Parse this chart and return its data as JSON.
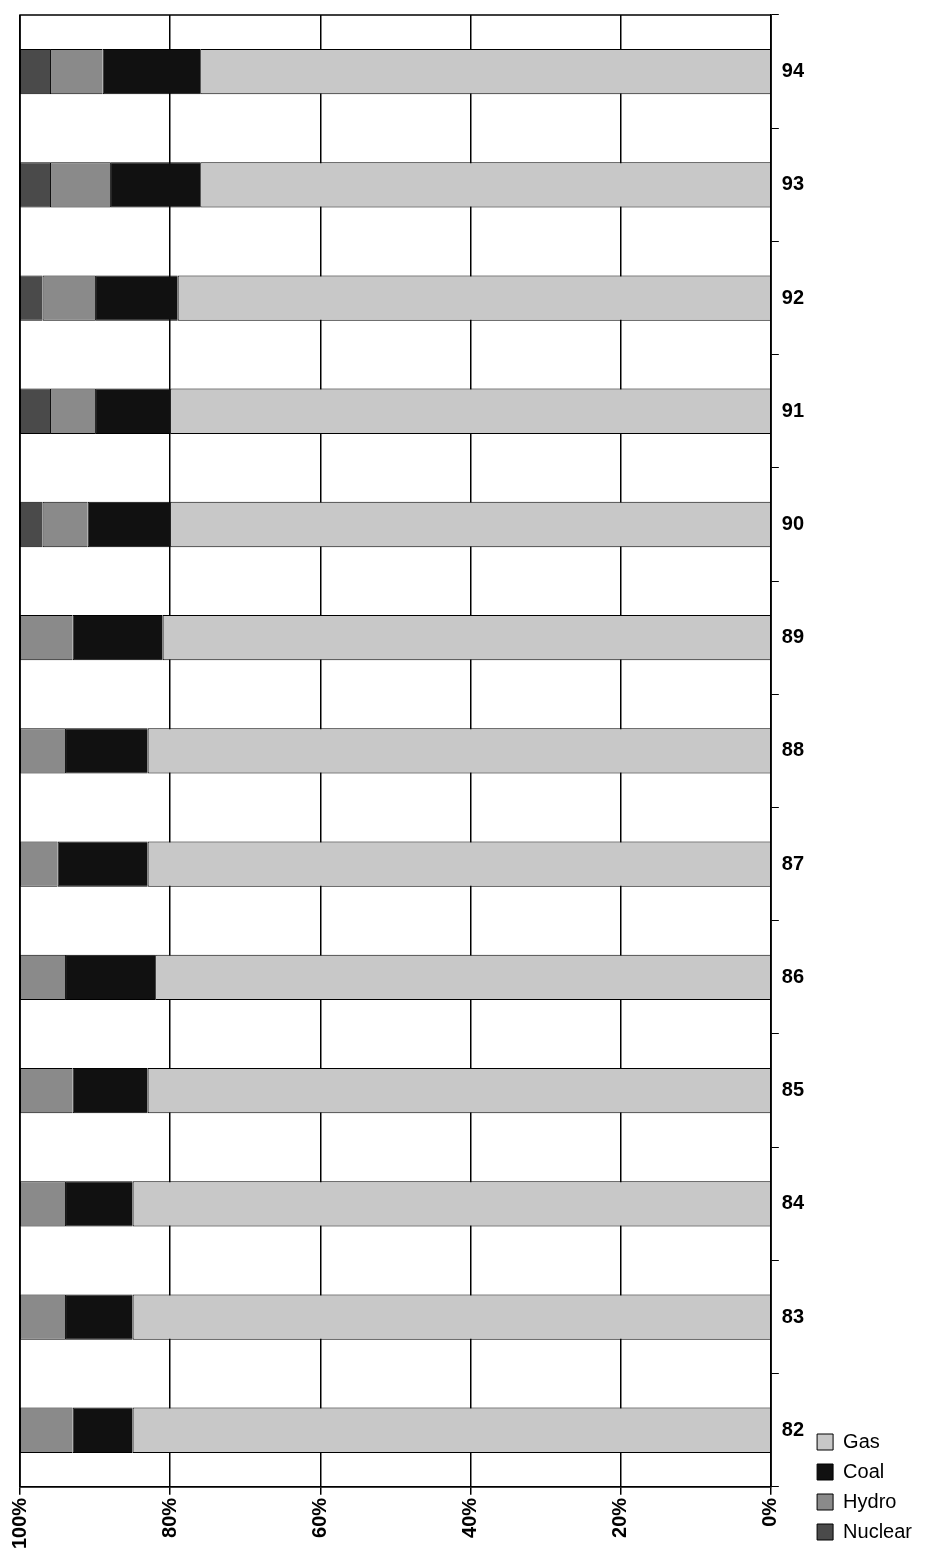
{
  "chart_data": {
    "type": "bar",
    "orientation": "horizontal",
    "stacked": true,
    "categories": [
      "94",
      "93",
      "92",
      "91",
      "90",
      "89",
      "88",
      "87",
      "86",
      "85",
      "84",
      "83",
      "82"
    ],
    "series": [
      {
        "name": "Gas",
        "color": "#c8c8c8",
        "values": [
          76,
          76,
          79,
          80,
          80,
          81,
          83,
          83,
          82,
          83,
          85,
          85,
          85
        ]
      },
      {
        "name": "Coal",
        "color": "#111111",
        "values": [
          13,
          12,
          11,
          10,
          11,
          12,
          11,
          12,
          12,
          10,
          9,
          9,
          8
        ]
      },
      {
        "name": "Hydro",
        "color": "#8a8a8a",
        "values": [
          7,
          8,
          7,
          6,
          6,
          7,
          6,
          5,
          6,
          7,
          6,
          6,
          7
        ]
      },
      {
        "name": "Nuclear",
        "color": "#4a4a4a",
        "values": [
          4,
          4,
          3,
          4,
          3,
          0,
          0,
          0,
          0,
          0,
          0,
          0,
          0
        ]
      }
    ],
    "xlim": [
      100,
      0
    ],
    "xticks": [
      {
        "value": 100,
        "label": "100%"
      },
      {
        "value": 80,
        "label": "80%"
      },
      {
        "value": 60,
        "label": "60%"
      },
      {
        "value": 40,
        "label": "40%"
      },
      {
        "value": 20,
        "label": "20%"
      },
      {
        "value": 0,
        "label": "0%"
      }
    ],
    "grid": "x",
    "legend": "right"
  }
}
